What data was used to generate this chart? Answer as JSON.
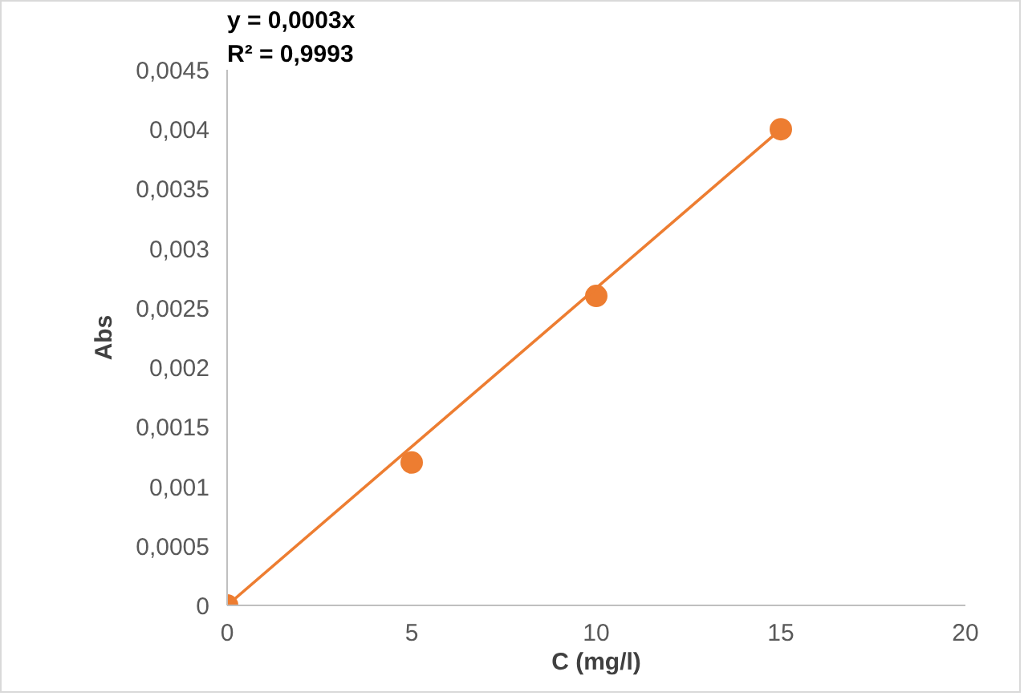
{
  "chart_data": {
    "type": "scatter",
    "xlabel": "C (mg/l)",
    "ylabel": "Abs",
    "annotations": [
      "y = 0,0003x",
      "R² = 0,9993"
    ],
    "series": [
      {
        "color": "#ed7d31",
        "marker": "circle",
        "x": [
          0,
          5,
          10,
          15
        ],
        "values": [
          0,
          0.0012,
          0.0026,
          0.004
        ]
      },
      {
        "type": "line",
        "color": "#ed7d31",
        "x": [
          0,
          15
        ],
        "values": [
          0,
          0.004
        ]
      }
    ],
    "grid": false,
    "xlim": [
      0,
      20
    ],
    "xticks": [
      0,
      5,
      10,
      15,
      20
    ],
    "ylim": [
      0,
      0.0045
    ],
    "yticks": [
      0,
      {
        "value": 0.0005,
        "label": "0,0005"
      },
      {
        "value": 0.001,
        "label": "0,001"
      },
      {
        "value": 0.0015,
        "label": "0,0015"
      },
      {
        "value": 0.002,
        "label": "0,002"
      },
      {
        "value": 0.0025,
        "label": "0,0025"
      },
      {
        "value": 0.003,
        "label": "0,003"
      },
      {
        "value": 0.0035,
        "label": "0,0035"
      },
      {
        "value": 0.004,
        "label": "0,004"
      },
      {
        "value": 0.0045,
        "label": "0,0045"
      }
    ]
  }
}
